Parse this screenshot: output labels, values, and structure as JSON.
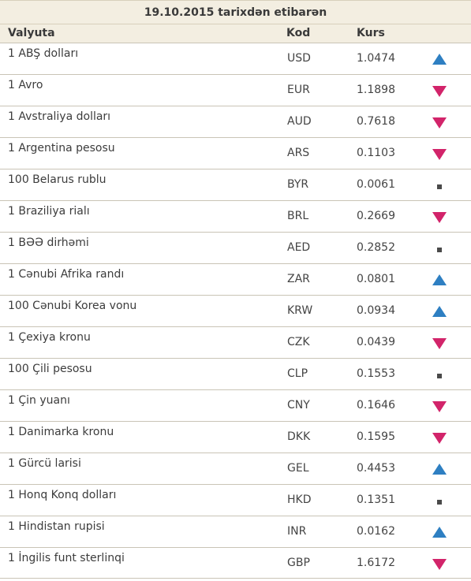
{
  "table": {
    "date_title": "19.10.2015 tarixdən etibarən",
    "headers": {
      "name": "Valyuta",
      "code": "Kod",
      "rate": "Kurs"
    },
    "colors": {
      "up": "#2e7fc2",
      "down": "#d2246a",
      "same": "#4a4a4a"
    },
    "rows": [
      {
        "name": "1 ABŞ dolları",
        "code": "USD",
        "rate": "1.0474",
        "trend": "up"
      },
      {
        "name": "1 Avro",
        "code": "EUR",
        "rate": "1.1898",
        "trend": "down"
      },
      {
        "name": "1 Avstraliya dolları",
        "code": "AUD",
        "rate": "0.7618",
        "trend": "down"
      },
      {
        "name": "1 Argentina pesosu",
        "code": "ARS",
        "rate": "0.1103",
        "trend": "down"
      },
      {
        "name": "100 Belarus rublu",
        "code": "BYR",
        "rate": "0.0061",
        "trend": "same"
      },
      {
        "name": "1 Braziliya rialı",
        "code": "BRL",
        "rate": "0.2669",
        "trend": "down"
      },
      {
        "name": "1 BƏƏ dirhəmi",
        "code": "AED",
        "rate": "0.2852",
        "trend": "same"
      },
      {
        "name": "1 Cənubi Afrika randı",
        "code": "ZAR",
        "rate": "0.0801",
        "trend": "up"
      },
      {
        "name": "100 Cənubi Korea vonu",
        "code": "KRW",
        "rate": "0.0934",
        "trend": "up"
      },
      {
        "name": "1 Çexiya kronu",
        "code": "CZK",
        "rate": "0.0439",
        "trend": "down"
      },
      {
        "name": "100 Çili pesosu",
        "code": "CLP",
        "rate": "0.1553",
        "trend": "same"
      },
      {
        "name": "1 Çin yuanı",
        "code": "CNY",
        "rate": "0.1646",
        "trend": "down"
      },
      {
        "name": "1 Danimarka kronu",
        "code": "DKK",
        "rate": "0.1595",
        "trend": "down"
      },
      {
        "name": "1 Gürcü larisi",
        "code": "GEL",
        "rate": "0.4453",
        "trend": "up"
      },
      {
        "name": "1 Honq Konq dolları",
        "code": "HKD",
        "rate": "0.1351",
        "trend": "same"
      },
      {
        "name": "1 Hindistan rupisi",
        "code": "INR",
        "rate": "0.0162",
        "trend": "up"
      },
      {
        "name": "1 İngilis funt sterlinqi",
        "code": "GBP",
        "rate": "1.6172",
        "trend": "down"
      }
    ]
  }
}
